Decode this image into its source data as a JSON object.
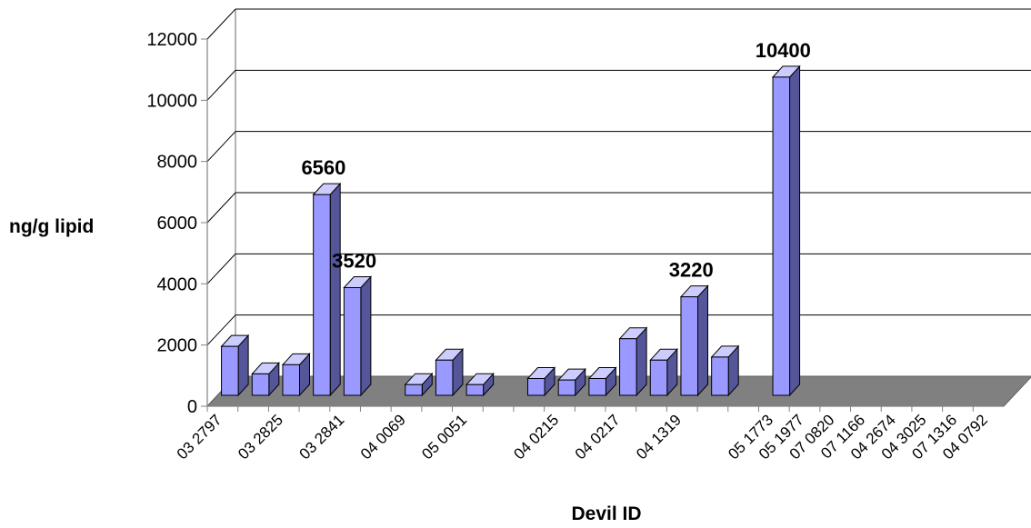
{
  "chart_data": {
    "type": "bar",
    "three_d": true,
    "xlabel": "Devil ID",
    "ylabel": "ng/g lipid",
    "ylim": [
      0,
      12000
    ],
    "yticks": [
      "0",
      "2000",
      "4000",
      "6000",
      "8000",
      "10000",
      "12000"
    ],
    "grid": true,
    "colors": {
      "bar_front": "#9999ff",
      "bar_top": "#ccccff",
      "bar_side": "#555599",
      "floor": "#808080"
    },
    "categories": [
      {
        "label": "03 2797",
        "value": 1600
      },
      {
        "label": "",
        "value": 700
      },
      {
        "label": "03 2825",
        "value": 1000
      },
      {
        "label": "",
        "value": 6560,
        "data_label": "6560"
      },
      {
        "label": "03 2841",
        "value": 3520,
        "data_label": "3520"
      },
      {
        "label": "",
        "value": null
      },
      {
        "label": "04 0069",
        "value": 350
      },
      {
        "label": "",
        "value": 1150
      },
      {
        "label": "05 0051",
        "value": 350
      },
      {
        "label": "",
        "value": null
      },
      {
        "label": "",
        "value": 550
      },
      {
        "label": "04 0215",
        "value": 500
      },
      {
        "label": "",
        "value": 550
      },
      {
        "label": "04 0217",
        "value": 1850
      },
      {
        "label": "",
        "value": 1150
      },
      {
        "label": "04 1319",
        "value": 3220,
        "data_label": "3220"
      },
      {
        "label": "",
        "value": 1250
      },
      {
        "label": "",
        "value": null
      },
      {
        "label": "05 1773",
        "value": 10400,
        "data_label": "10400"
      },
      {
        "label": "05 1977",
        "value": null
      },
      {
        "label": "07 0820",
        "value": null
      },
      {
        "label": "07 1166",
        "value": null
      },
      {
        "label": "04 2674",
        "value": null
      },
      {
        "label": "04 3025",
        "value": null
      },
      {
        "label": "07 1316",
        "value": null
      },
      {
        "label": "04 0792",
        "value": null
      }
    ]
  }
}
